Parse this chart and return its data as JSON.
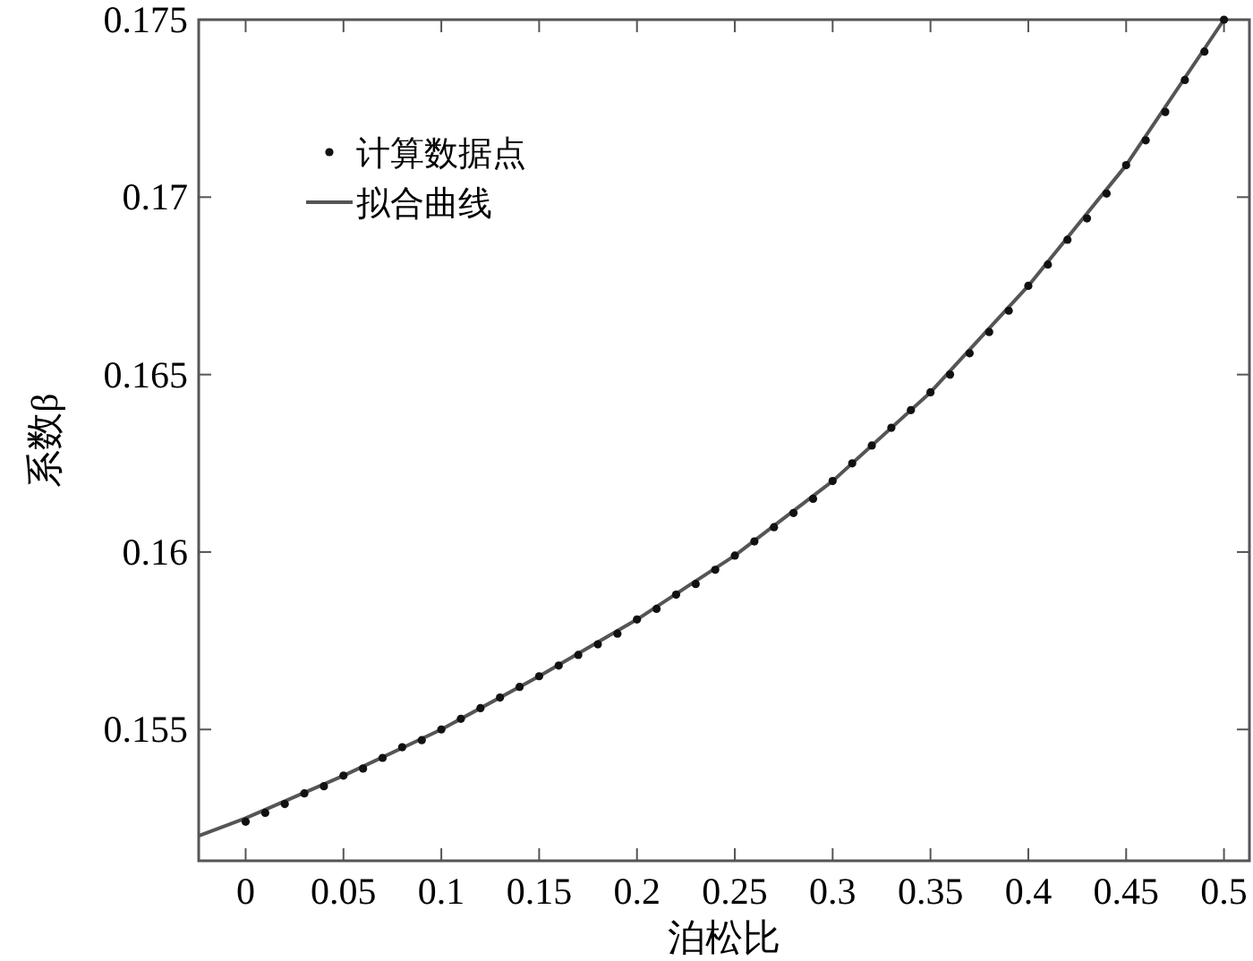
{
  "chart_data": {
    "type": "scatter",
    "xlabel": "泊松比",
    "ylabel": "系数β",
    "xlim": [
      -0.024,
      0.513
    ],
    "ylim": [
      0.1513,
      0.175
    ],
    "xticks": [
      0,
      0.05,
      0.1,
      0.15,
      0.2,
      0.25,
      0.3,
      0.35,
      0.4,
      0.45,
      0.5
    ],
    "yticks": [
      0.155,
      0.16,
      0.165,
      0.17,
      0.175
    ],
    "legend": "top left",
    "series": [
      {
        "name": "计算数据点",
        "type": "scatter",
        "marker": "circle",
        "color": "#111111",
        "x": [
          0,
          0.01,
          0.02,
          0.03,
          0.04,
          0.05,
          0.06,
          0.07,
          0.08,
          0.09,
          0.1,
          0.11,
          0.12,
          0.13,
          0.14,
          0.15,
          0.16,
          0.17,
          0.18,
          0.19,
          0.2,
          0.21,
          0.22,
          0.23,
          0.24,
          0.25,
          0.26,
          0.27,
          0.28,
          0.29,
          0.3,
          0.31,
          0.32,
          0.33,
          0.34,
          0.35,
          0.36,
          0.37,
          0.38,
          0.39,
          0.4,
          0.41,
          0.42,
          0.43,
          0.44,
          0.45,
          0.46,
          0.47,
          0.48,
          0.49,
          0.5
        ],
        "values": [
          0.1524,
          0.15265,
          0.1529,
          0.1532,
          0.1534,
          0.1537,
          0.1539,
          0.1542,
          0.1545,
          0.1547,
          0.155,
          0.1553,
          0.1556,
          0.1559,
          0.1562,
          0.1565,
          0.1568,
          0.1571,
          0.1574,
          0.1577,
          0.1581,
          0.1584,
          0.1588,
          0.1591,
          0.1595,
          0.1599,
          0.1603,
          0.1607,
          0.1611,
          0.1615,
          0.162,
          0.1625,
          0.163,
          0.1635,
          0.164,
          0.1645,
          0.165,
          0.1656,
          0.1662,
          0.1668,
          0.1675,
          0.1681,
          0.1688,
          0.1694,
          0.1701,
          0.1709,
          0.1716,
          0.1724,
          0.1733,
          0.1741,
          0.175
        ]
      },
      {
        "name": "拟合曲线",
        "type": "line",
        "marker": "none",
        "line_style": "solid",
        "color": "#555555",
        "x": [
          -0.024,
          0,
          0.05,
          0.1,
          0.15,
          0.2,
          0.25,
          0.3,
          0.35,
          0.4,
          0.45,
          0.5
        ],
        "values": [
          0.152,
          0.1525,
          0.1537,
          0.155,
          0.1565,
          0.1581,
          0.1599,
          0.162,
          0.1645,
          0.1675,
          0.1709,
          0.175
        ]
      }
    ]
  }
}
